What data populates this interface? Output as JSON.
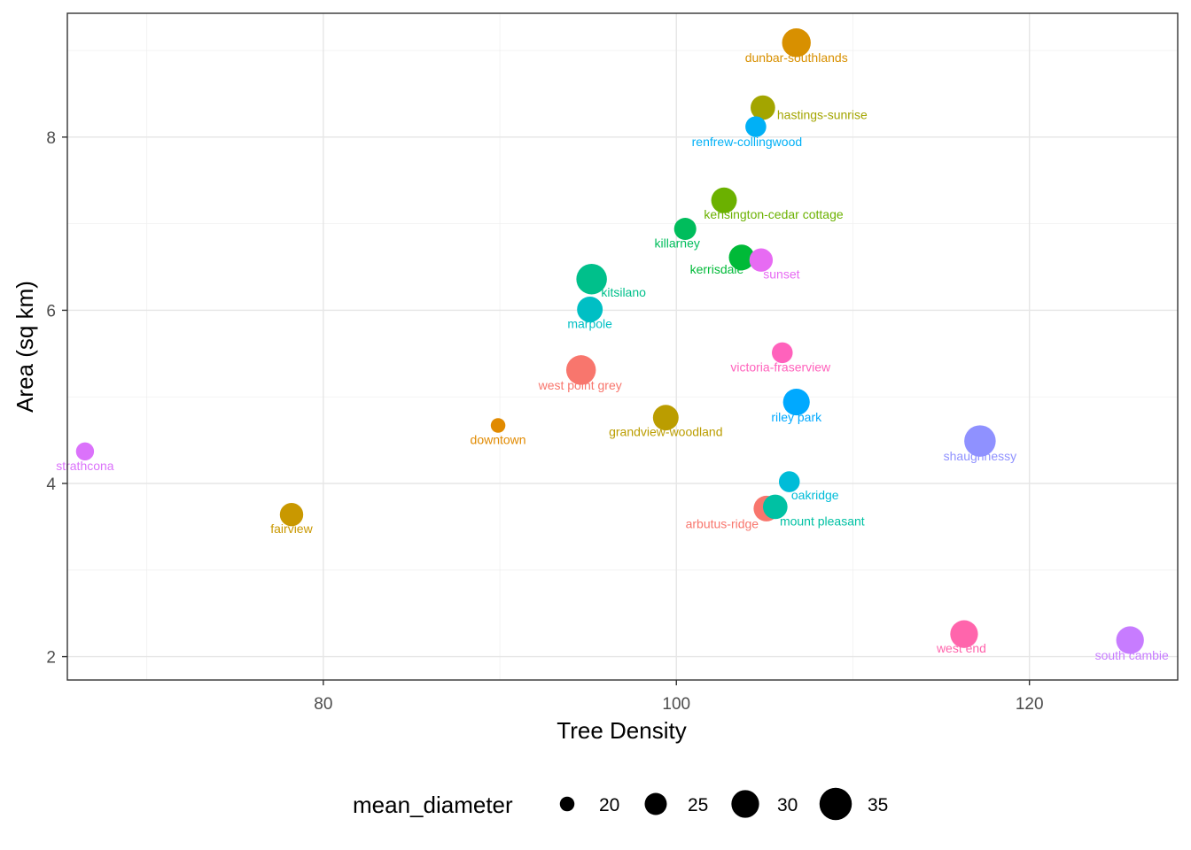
{
  "chart_data": {
    "type": "scatter",
    "xlabel": "Tree Density",
    "ylabel": "Area (sq km)",
    "xlim": [
      65.5,
      128.4
    ],
    "ylim": [
      1.73,
      9.43
    ],
    "x_ticks": [
      80,
      100,
      120
    ],
    "y_ticks": [
      2,
      4,
      6,
      8
    ],
    "grid": true,
    "legend": {
      "title": "mean_diameter",
      "position": "bottom",
      "size_breaks": [
        20,
        25,
        30,
        35
      ]
    },
    "size_range": [
      16.5,
      36.5
    ],
    "points": [
      {
        "name": "dunbar-southlands",
        "x": 106.8,
        "y": 9.09,
        "size": 31,
        "color": "#D89000",
        "label_dx": 0,
        "label_dy": 22
      },
      {
        "name": "hastings-sunrise",
        "x": 104.9,
        "y": 8.34,
        "size": 27,
        "color": "#A3A500",
        "label_dx": 67,
        "label_dy": 13
      },
      {
        "name": "renfrew-collingwood",
        "x": 104.5,
        "y": 8.12,
        "size": 24,
        "color": "#00B0F6",
        "label_dx": -10,
        "label_dy": 22
      },
      {
        "name": "kensington-cedar cottage",
        "x": 102.7,
        "y": 7.27,
        "size": 28,
        "color": "#6BB100",
        "label_dx": 56,
        "label_dy": 21
      },
      {
        "name": "killarney",
        "x": 100.5,
        "y": 6.94,
        "size": 25,
        "color": "#00BD5C",
        "label_dx": -9,
        "label_dy": 21
      },
      {
        "name": "kerrisdale",
        "x": 103.7,
        "y": 6.61,
        "size": 28,
        "color": "#00BA38",
        "label_dx": -28,
        "label_dy": 18
      },
      {
        "name": "sunset",
        "x": 104.8,
        "y": 6.58,
        "size": 26,
        "color": "#E76BF3",
        "label_dx": 23,
        "label_dy": 21
      },
      {
        "name": "kitsilano",
        "x": 95.2,
        "y": 6.36,
        "size": 33,
        "color": "#00C08B",
        "label_dx": 36,
        "label_dy": 20
      },
      {
        "name": "marpole",
        "x": 95.1,
        "y": 6.01,
        "size": 28,
        "color": "#00BFC4",
        "label_dx": 0,
        "label_dy": 21
      },
      {
        "name": "victoria-fraserview",
        "x": 106.0,
        "y": 5.51,
        "size": 24,
        "color": "#FF62BC",
        "label_dx": -2,
        "label_dy": 21
      },
      {
        "name": "west point grey",
        "x": 94.6,
        "y": 5.31,
        "size": 32,
        "color": "#F8766D",
        "label_dx": -1,
        "label_dy": 22
      },
      {
        "name": "riley park",
        "x": 106.8,
        "y": 4.94,
        "size": 29,
        "color": "#00A9FF",
        "label_dx": 0,
        "label_dy": 22
      },
      {
        "name": "grandview-woodland",
        "x": 99.4,
        "y": 4.76,
        "size": 28,
        "color": "#BB9D00",
        "label_dx": 0,
        "label_dy": 21
      },
      {
        "name": "downtown",
        "x": 89.9,
        "y": 4.67,
        "size": 13,
        "color": "#E18A00",
        "label_dx": 0,
        "label_dy": 21
      },
      {
        "name": "shaughnessy",
        "x": 117.2,
        "y": 4.49,
        "size": 34,
        "color": "#8F91FF",
        "label_dx": 0,
        "label_dy": 22
      },
      {
        "name": "strathcona",
        "x": 66.5,
        "y": 4.37,
        "size": 22,
        "color": "#DB72FB",
        "label_dx": 0,
        "label_dy": 21
      },
      {
        "name": "oakridge",
        "x": 106.4,
        "y": 4.02,
        "size": 24,
        "color": "#00BCD8",
        "label_dx": 29,
        "label_dy": 20
      },
      {
        "name": "arbutus-ridge",
        "x": 105.1,
        "y": 3.71,
        "size": 28,
        "color": "#F8766D",
        "label_dx": -50,
        "label_dy": 22
      },
      {
        "name": "mount pleasant",
        "x": 105.6,
        "y": 3.73,
        "size": 27,
        "color": "#00C1A3",
        "label_dx": 53,
        "label_dy": 21
      },
      {
        "name": "fairview",
        "x": 78.2,
        "y": 3.64,
        "size": 26,
        "color": "#C99800",
        "label_dx": 0,
        "label_dy": 21
      },
      {
        "name": "west end",
        "x": 116.3,
        "y": 2.26,
        "size": 30,
        "color": "#FF65AC",
        "label_dx": -3,
        "label_dy": 21
      },
      {
        "name": "south cambie",
        "x": 125.7,
        "y": 2.19,
        "size": 30,
        "color": "#C77CFF",
        "label_dx": 2,
        "label_dy": 22
      }
    ]
  }
}
